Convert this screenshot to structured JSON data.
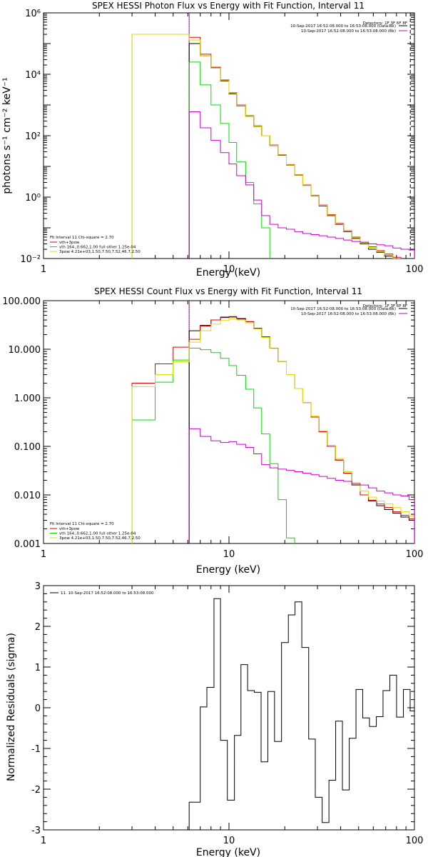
{
  "chart_data": [
    {
      "type": "line",
      "title": "SPEX HESSI Photon Flux vs Energy with Fit Function, Interval 11",
      "xlabel": "Energy (keV)",
      "ylabel": "photons s⁻¹ cm⁻² keV⁻¹",
      "xscale": "log",
      "yscale": "log",
      "xlim": [
        1,
        100
      ],
      "ylim": [
        0.01,
        1000000
      ],
      "grid": false,
      "legend_position": "top-right",
      "x_ticks": [
        {
          "value": 1,
          "label": "1"
        },
        {
          "value": 10,
          "label": "10"
        },
        {
          "value": 100,
          "label": "100"
        }
      ],
      "y_ticks": [
        {
          "value": 0.01,
          "label": "10⁻²"
        },
        {
          "value": 1,
          "label": "10⁰"
        },
        {
          "value": 100,
          "label": "10²"
        },
        {
          "value": 10000,
          "label": "10⁴"
        },
        {
          "value": 1000000,
          "label": "10⁶"
        }
      ],
      "legend_header": "Detectors: 1F 3F 6F 8F",
      "legend": [
        {
          "label": "10-Sep-2017 16:52:08.000 to 16:53:08.000 (Data-Bk)",
          "color": "#000000"
        },
        {
          "label": "10-Sep-2017 16:52:08.000 to 16:53:08.000 (Bk)",
          "color": "#cc00cc"
        }
      ],
      "fit_text": "Fit Interval 11   Chi-square = 2.70",
      "fit_legend": [
        {
          "label": "vth+3pow",
          "color": "#dd0000"
        },
        {
          "label": "vth 164.,0.662,1.00  full other 1.25e-04",
          "color": "#00dd00"
        },
        {
          "label": "3pow 4.21e+03,1.50,7.50,7.52,46.7,2.50",
          "color": "#dddd00"
        }
      ],
      "markers": [
        {
          "x": 6.1,
          "style": "dotted",
          "color": "#0000ff"
        },
        {
          "x": 6.1,
          "style": "solid",
          "color": "#cc00cc"
        },
        {
          "x": 95,
          "style": "dashed",
          "color": "#000000"
        }
      ],
      "bin_edges": [
        3.0,
        6.1,
        7.0,
        8.0,
        9.0,
        10.0,
        11.0,
        12.3,
        13.6,
        15.0,
        16.6,
        18.4,
        20.4,
        22.6,
        25.0,
        27.7,
        30.6,
        33.9,
        37.5,
        41.5,
        46.0,
        51.0,
        56.5,
        62.5,
        69.0,
        76.5,
        84.5,
        93.5,
        100.0
      ],
      "series": [
        {
          "name": "Data-Bk",
          "color": "#000000",
          "values": [
            null,
            100000,
            40000,
            16000,
            6000,
            2300,
            950,
            430,
            200,
            100,
            48,
            23,
            11,
            5.2,
            2.4,
            1.1,
            0.52,
            0.25,
            0.13,
            0.075,
            0.045,
            0.03,
            0.02,
            0.016,
            0.012,
            0.01,
            0.008,
            0.0065
          ]
        },
        {
          "name": "vth+3pow",
          "color": "#dd0000",
          "values": [
            200000,
            160000,
            45000,
            17000,
            6500,
            2500,
            1000,
            450,
            210,
            100,
            50,
            24,
            11.5,
            5.4,
            2.5,
            1.15,
            0.55,
            0.27,
            0.14,
            0.08,
            0.05,
            0.033,
            0.024,
            0.018,
            0.014,
            0.011,
            0.009,
            0.0075
          ]
        },
        {
          "name": "vth",
          "color": "#00dd00",
          "values": [
            null,
            25000,
            4500,
            1000,
            250,
            60,
            14,
            3,
            0.6,
            0.1,
            null,
            null,
            null,
            null,
            null,
            null,
            null,
            null,
            null,
            null,
            null,
            null,
            null,
            null,
            null,
            null,
            null,
            null
          ]
        },
        {
          "name": "3pow",
          "color": "#dddd00",
          "values": [
            200000,
            130000,
            40000,
            16000,
            6200,
            2400,
            980,
            440,
            205,
            100,
            49,
            23.5,
            11.2,
            5.3,
            2.45,
            1.12,
            0.54,
            0.26,
            0.135,
            0.078,
            0.048,
            0.032,
            0.023,
            0.017,
            0.013,
            0.01,
            0.0085,
            0.007
          ]
        },
        {
          "name": "Bk",
          "color": "#cc00cc",
          "values": [
            null,
            600,
            180,
            70,
            28,
            12,
            5,
            2.5,
            0.8,
            0.25,
            0.13,
            0.1,
            0.09,
            0.075,
            0.065,
            0.06,
            0.055,
            0.05,
            0.045,
            0.04,
            0.036,
            0.034,
            0.03,
            0.028,
            0.026,
            0.022,
            0.02,
            0.019
          ]
        }
      ]
    },
    {
      "type": "line",
      "title": "SPEX HESSI Count Flux vs Energy with Fit Function, Interval 11",
      "xlabel": "Energy (keV)",
      "ylabel": "",
      "xscale": "log",
      "yscale": "log",
      "xlim": [
        1,
        100
      ],
      "ylim": [
        0.001,
        100
      ],
      "grid": false,
      "legend_position": "top-right",
      "x_ticks": [
        {
          "value": 1,
          "label": "1"
        },
        {
          "value": 10,
          "label": "10"
        },
        {
          "value": 100,
          "label": "100"
        }
      ],
      "y_ticks": [
        {
          "value": 0.001,
          "label": "0.001"
        },
        {
          "value": 0.01,
          "label": "0.010"
        },
        {
          "value": 0.1,
          "label": "0.100"
        },
        {
          "value": 1,
          "label": "1.000"
        },
        {
          "value": 10,
          "label": "10.000"
        },
        {
          "value": 100,
          "label": "100.000"
        }
      ],
      "legend_header": "Detectors: 1F 3F 6F 8F",
      "legend": [
        {
          "label": "10-Sep-2017 16:52:08.000 to 16:53:08.000 (Data-Bk)",
          "color": "#000000"
        },
        {
          "label": "10-Sep-2017 16:52:08.000 to 16:53:08.000 (Bk)",
          "color": "#cc00cc"
        }
      ],
      "fit_text": "Fit Interval 11   Chi-square = 2.70",
      "fit_legend": [
        {
          "label": "vth+3pow",
          "color": "#dd0000"
        },
        {
          "label": "vth 164.,0.662,1.00  full other 1.25e-04",
          "color": "#00dd00"
        },
        {
          "label": "3pow 4.21e+03,1.50,7.50,7.52,46.7,2.50",
          "color": "#dddd00"
        }
      ],
      "markers": [
        {
          "x": 6.1,
          "style": "dotted",
          "color": "#000000"
        },
        {
          "x": 6.1,
          "style": "solid",
          "color": "#cc00cc"
        }
      ],
      "bin_edges": [
        3.0,
        4.0,
        5.0,
        6.1,
        7.0,
        8.0,
        9.0,
        10.0,
        11.0,
        12.3,
        13.6,
        15.0,
        16.6,
        18.4,
        20.4,
        22.6,
        25.0,
        27.7,
        30.6,
        33.9,
        37.5,
        41.5,
        46.0,
        51.0,
        56.5,
        62.5,
        69.0,
        76.5,
        84.5,
        93.5,
        100.0
      ],
      "series": [
        {
          "name": "Data-Bk",
          "color": "#000000",
          "values": [
            null,
            null,
            null,
            24,
            31,
            40,
            45,
            46,
            42,
            37,
            27,
            18,
            10.5,
            5.6,
            3.0,
            1.55,
            0.8,
            0.4,
            0.2,
            0.1,
            0.052,
            0.028,
            0.016,
            0.01,
            0.0075,
            0.006,
            0.005,
            0.0042,
            0.0035,
            0.003
          ]
        },
        {
          "name": "vth+3pow",
          "color": "#dd0000",
          "values": [
            2.0,
            5.0,
            11.0,
            16.0,
            30.0,
            40.0,
            46.0,
            47.0,
            43.0,
            37.0,
            27.0,
            18.0,
            10.5,
            5.6,
            3.0,
            1.55,
            0.8,
            0.4,
            0.2,
            0.1,
            0.052,
            0.028,
            0.016,
            0.01,
            0.0078,
            0.0065,
            0.0055,
            0.0045,
            0.0038,
            0.0032
          ]
        },
        {
          "name": "vth",
          "color": "#00dd00",
          "values": [
            0.35,
            2.1,
            6.0,
            10.5,
            9.8,
            8.5,
            6.5,
            4.6,
            2.9,
            1.5,
            0.62,
            0.18,
            0.044,
            0.008,
            0.0013,
            null,
            null,
            null,
            null,
            null,
            null,
            null,
            null,
            null,
            null,
            null,
            null,
            null,
            null,
            null
          ]
        },
        {
          "name": "3pow",
          "color": "#dddd00",
          "values": [
            1.7,
            3.0,
            5.5,
            14.0,
            24.0,
            33.0,
            39.0,
            42.0,
            40.0,
            35.0,
            26.0,
            17.5,
            10.4,
            5.6,
            3.0,
            1.55,
            0.8,
            0.42,
            0.21,
            0.105,
            0.056,
            0.03,
            0.018,
            0.012,
            0.009,
            0.0075,
            0.0065,
            0.0055,
            0.0045,
            0.0037
          ]
        },
        {
          "name": "Bk",
          "color": "#cc00cc",
          "values": [
            null,
            null,
            null,
            0.23,
            0.16,
            0.13,
            0.12,
            0.125,
            0.11,
            0.095,
            0.07,
            0.042,
            0.036,
            0.034,
            0.032,
            0.03,
            0.028,
            0.026,
            0.024,
            0.022,
            0.02,
            0.019,
            0.017,
            0.016,
            0.014,
            0.012,
            0.011,
            0.01,
            0.0095,
            0.008
          ]
        }
      ]
    },
    {
      "type": "line",
      "title": "",
      "xlabel": "Energy (keV)",
      "ylabel": "Normalized Residuals (sigma)",
      "xscale": "log",
      "yscale": "linear",
      "xlim": [
        1,
        100
      ],
      "ylim": [
        -3,
        3
      ],
      "grid": false,
      "legend_position": "top-left",
      "x_ticks": [
        {
          "value": 1,
          "label": "1"
        },
        {
          "value": 10,
          "label": "10"
        },
        {
          "value": 100,
          "label": "100"
        }
      ],
      "y_ticks": [
        {
          "value": -3,
          "label": "-3"
        },
        {
          "value": -2,
          "label": "-2"
        },
        {
          "value": -1,
          "label": "-1"
        },
        {
          "value": 0,
          "label": "0"
        },
        {
          "value": 1,
          "label": "1"
        },
        {
          "value": 2,
          "label": "2"
        },
        {
          "value": 3,
          "label": "3"
        }
      ],
      "legend": [
        {
          "label": "11. 10-Sep-2017 16:52:08.000 to 16:53:08.000",
          "color": "#000000"
        }
      ],
      "bin_edges": [
        6.1,
        7.0,
        7.6,
        8.3,
        9.0,
        9.8,
        10.7,
        11.6,
        12.6,
        13.7,
        14.9,
        16.2,
        17.6,
        19.2,
        20.9,
        22.7,
        24.7,
        26.9,
        29.2,
        31.8,
        34.6,
        37.6,
        40.9,
        44.5,
        48.4,
        52.6,
        57.2,
        62.3,
        67.7,
        73.7,
        80.1,
        87.2,
        94.8,
        100.0
      ],
      "series": [
        {
          "name": "residuals",
          "color": "#000000",
          "values": [
            -2.32,
            0.02,
            0.5,
            2.68,
            -0.8,
            -2.27,
            -0.68,
            1.06,
            0.42,
            0.38,
            -1.33,
            0.4,
            -0.83,
            1.6,
            2.28,
            2.6,
            1.48,
            -0.77,
            -2.2,
            -2.82,
            -1.78,
            -0.33,
            -2.02,
            -0.75,
            0.45,
            -0.25,
            -0.46,
            -0.22,
            0.42,
            0.8,
            -0.23,
            0.45,
            -0.08
          ]
        }
      ]
    }
  ]
}
